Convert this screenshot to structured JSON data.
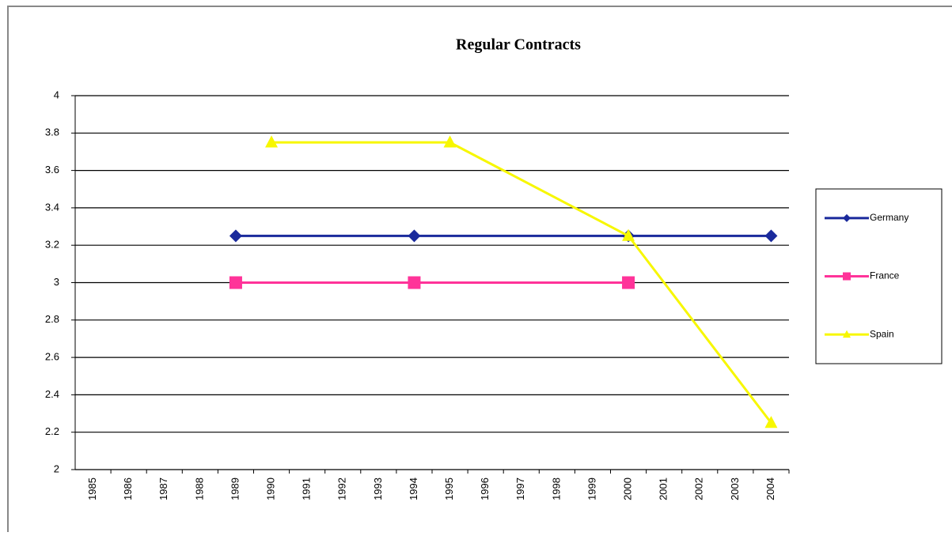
{
  "chart_data": {
    "type": "line",
    "title": "Regular Contracts",
    "xlim": [
      1984.5,
      2004.5
    ],
    "xticks": [
      1985,
      1986,
      1987,
      1988,
      1989,
      1990,
      1991,
      1992,
      1993,
      1994,
      1995,
      1996,
      1997,
      1998,
      1999,
      2000,
      2001,
      2002,
      2003,
      2004
    ],
    "ylim": [
      2,
      4
    ],
    "yticks": [
      2,
      2.2,
      2.4,
      2.6,
      2.8,
      3,
      3.2,
      3.4,
      3.6,
      3.8,
      4
    ],
    "grid": true,
    "legend": "right",
    "series": [
      {
        "name": "Germany",
        "color": "#1a2a9c",
        "marker": "diamond",
        "x": [
          1989,
          1994,
          2000,
          2004
        ],
        "values": [
          3.25,
          3.25,
          3.25,
          3.25
        ]
      },
      {
        "name": "France",
        "color": "#ff3399",
        "marker": "square",
        "x": [
          1989,
          1994,
          2000
        ],
        "values": [
          3,
          3,
          3
        ]
      },
      {
        "name": "Spain",
        "color": "#f7f700",
        "marker": "triangle",
        "x": [
          1990,
          1995,
          2000,
          2004
        ],
        "values": [
          3.75,
          3.75,
          3.25,
          2.25
        ]
      }
    ]
  }
}
